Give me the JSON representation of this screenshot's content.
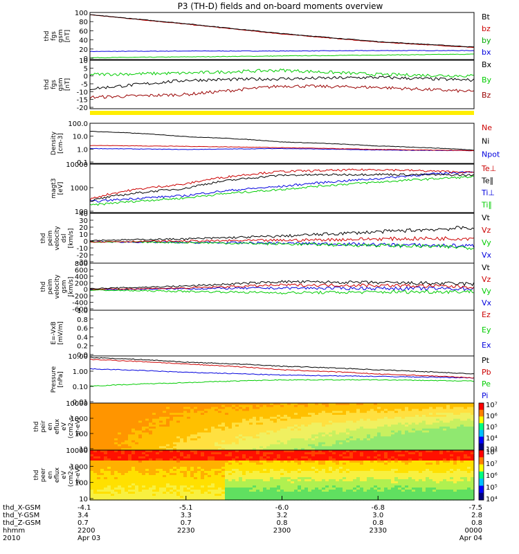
{
  "title": "P3 (TH-D) fields and on-board moments overview",
  "colors": {
    "black": "#000000",
    "red": "#cc0000",
    "darkred": "#990000",
    "green": "#00cc00",
    "blue": "#0000dd",
    "yellow": "#ffee00"
  },
  "panels": [
    {
      "id": "fgs-mag",
      "ylabel": [
        "thd",
        "fgs",
        "gsm",
        "[nT]"
      ],
      "ticks": [
        "100",
        "80",
        "60",
        "40",
        "20",
        "0"
      ],
      "legend": [
        {
          "text": "Bt",
          "color": "#000000"
        },
        {
          "text": "bz",
          "color": "#cc0000"
        },
        {
          "text": "by",
          "color": "#00aa00"
        },
        {
          "text": "bx",
          "color": "#0000dd"
        }
      ]
    },
    {
      "id": "fgs-comp",
      "ylabel": [
        "thd",
        "fgs",
        "gsm",
        "[nT]"
      ],
      "ticks": [
        "10",
        "5",
        "0",
        "-5",
        "-10",
        "-15",
        "-20"
      ],
      "legend": [
        {
          "text": "Bx",
          "color": "#000000"
        },
        {
          "text": "By",
          "color": "#00cc00"
        },
        {
          "text": "Bz",
          "color": "#990000"
        }
      ]
    },
    {
      "id": "density",
      "ylabel": [
        "Density",
        "[cm-3]"
      ],
      "ticks": [
        "100.0",
        "10.0",
        "1.0",
        "0.1"
      ],
      "legend": [
        {
          "text": "Ne",
          "color": "#cc0000"
        },
        {
          "text": "Ni",
          "color": "#000000"
        },
        {
          "text": "Npot",
          "color": "#0000dd"
        }
      ]
    },
    {
      "id": "temperature",
      "ylabel": [
        "magt3",
        "[eV]"
      ],
      "ticks": [
        "10000",
        "1000",
        "100"
      ],
      "legend": [
        {
          "text": "Te⊥",
          "color": "#cc0000"
        },
        {
          "text": "Te∥",
          "color": "#000000"
        },
        {
          "text": "Ti⊥",
          "color": "#0000dd"
        },
        {
          "text": "Ti∥",
          "color": "#00cc00"
        }
      ]
    },
    {
      "id": "peem-vel",
      "ylabel": [
        "thd",
        "peim",
        "velocity",
        "dsl",
        "[km/s]"
      ],
      "ticks": [
        "40",
        "30",
        "20",
        "10",
        "0",
        "-10",
        "-20",
        "-30"
      ],
      "legend": [
        {
          "text": "Vt",
          "color": "#000000"
        },
        {
          "text": "Vz",
          "color": "#cc0000"
        },
        {
          "text": "Vy",
          "color": "#00cc00"
        },
        {
          "text": "Vx",
          "color": "#0000dd"
        }
      ]
    },
    {
      "id": "peim-vel",
      "ylabel": [
        "thd",
        "peim",
        "velocity",
        "gsm",
        "[km/s]"
      ],
      "ticks": [
        "800",
        "600",
        "400",
        "200",
        "0",
        "-200",
        "-400",
        "-600"
      ],
      "legend": [
        {
          "text": "Vt",
          "color": "#000000"
        },
        {
          "text": "Vz",
          "color": "#cc0000"
        },
        {
          "text": "Vy",
          "color": "#00cc00"
        },
        {
          "text": "Vx",
          "color": "#0000dd"
        }
      ]
    },
    {
      "id": "efield",
      "ylabel": [
        "E=-VxB",
        "[mV/m]"
      ],
      "ticks": [
        "1.0",
        "0.8",
        "0.6",
        "0.4",
        "0.2",
        "0.0"
      ],
      "legend": [
        {
          "text": "Ez",
          "color": "#cc0000"
        },
        {
          "text": "Ey",
          "color": "#00cc00"
        },
        {
          "text": "Ex",
          "color": "#0000dd"
        }
      ]
    },
    {
      "id": "pressure",
      "ylabel": [
        "Pressure",
        "[nPa]"
      ],
      "ticks": [
        "10.00",
        "1.00",
        "0.10",
        "0.01"
      ],
      "legend": [
        {
          "text": "Pt",
          "color": "#000000"
        },
        {
          "text": "Pb",
          "color": "#cc0000"
        },
        {
          "text": "Pe",
          "color": "#00cc00"
        },
        {
          "text": "Pi",
          "color": "#0000dd"
        }
      ]
    },
    {
      "id": "ion-spec",
      "ylabel": [
        "thd",
        "peir",
        "en",
        "eflux",
        "eV",
        "(cm2-s-",
        "sr-eV)"
      ],
      "ticks": [
        "10000",
        "1000",
        "100",
        "10"
      ],
      "colorbar": [
        "10⁷",
        "10⁶",
        "10⁵",
        "10⁴",
        "10³"
      ]
    },
    {
      "id": "elec-spec",
      "ylabel": [
        "thd",
        "peer",
        "en",
        "eflux",
        "eV",
        "(cm2-s-",
        "sr-eV)"
      ],
      "ticks": [
        "10000",
        "1000",
        "100",
        "10"
      ],
      "colorbar": [
        "10⁸",
        "10⁷",
        "10⁶",
        "10⁵",
        "10⁴"
      ]
    }
  ],
  "footer": {
    "labels": [
      "thd_X-GSM",
      "thd_Y-GSM",
      "thd_Z-GSM",
      "hhmm",
      "2010"
    ],
    "columns": [
      [
        "-4.1",
        "3.4",
        "0.7",
        "2200",
        "Apr 03"
      ],
      [
        "-5.1",
        "3.3",
        "0.7",
        "2230",
        ""
      ],
      [
        "-6.0",
        "3.2",
        "0.8",
        "2300",
        ""
      ],
      [
        "-6.8",
        "3.0",
        "0.8",
        "2330",
        ""
      ],
      [
        "-7.5",
        "2.8",
        "0.8",
        "0000",
        "Apr 04"
      ]
    ]
  },
  "chart_data": [
    {
      "type": "line",
      "ylabel": "thd fgs gsm [nT]",
      "ylim": [
        0,
        105
      ],
      "x": [
        "2200",
        "2230",
        "2300",
        "2330",
        "0000"
      ],
      "series": [
        {
          "name": "Bt",
          "values": [
            100,
            80,
            58,
            40,
            28
          ]
        },
        {
          "name": "bz",
          "values": [
            100,
            79,
            57,
            39,
            27
          ]
        },
        {
          "name": "by",
          "values": [
            4,
            6,
            8,
            10,
            12
          ]
        },
        {
          "name": "bx",
          "values": [
            18,
            19,
            19,
            20,
            20
          ]
        }
      ]
    },
    {
      "type": "line",
      "ylabel": "thd fgs gsm [nT]",
      "ylim": [
        -22,
        12
      ],
      "x": [
        "2200",
        "2230",
        "2300",
        "2330",
        "0000"
      ],
      "series": [
        {
          "name": "Bx",
          "values": [
            -8,
            -2,
            -1,
            0,
            -2
          ]
        },
        {
          "name": "By",
          "values": [
            2,
            3,
            5,
            2,
            1
          ]
        },
        {
          "name": "Bz",
          "values": [
            -14,
            -12,
            -6,
            -7,
            -10
          ]
        }
      ]
    },
    {
      "type": "line",
      "ylabel": "Density [cm-3]",
      "scale": "log",
      "ylim": [
        0.1,
        100
      ],
      "x": [
        "2200",
        "2230",
        "2300",
        "2330",
        "0000"
      ],
      "series": [
        {
          "name": "Ne",
          "values": [
            2.2,
            1.9,
            1.5,
            1.1,
            0.9
          ]
        },
        {
          "name": "Ni",
          "values": [
            25,
            10,
            4,
            2,
            1
          ]
        },
        {
          "name": "Npot",
          "values": [
            1.3,
            1.1,
            1.3,
            1.0,
            0.9
          ]
        }
      ]
    },
    {
      "type": "line",
      "ylabel": "magt3 [eV]",
      "scale": "log",
      "ylim": [
        100,
        10000
      ],
      "x": [
        "2200",
        "2230",
        "2300",
        "2330",
        "0000"
      ],
      "series": [
        {
          "name": "Te⊥",
          "values": [
            350,
            1500,
            5000,
            6000,
            4500
          ]
        },
        {
          "name": "Te∥",
          "values": [
            300,
            1000,
            3500,
            3800,
            3500
          ]
        },
        {
          "name": "Ti⊥",
          "values": [
            280,
            500,
            1200,
            2500,
            5000
          ]
        },
        {
          "name": "Ti∥",
          "values": [
            200,
            400,
            900,
            1800,
            3000
          ]
        }
      ]
    },
    {
      "type": "line",
      "ylabel": "thd peim velocity dsl [km/s]",
      "ylim": [
        -30,
        40
      ],
      "x": [
        "2200",
        "2230",
        "2300",
        "2330",
        "0000"
      ],
      "series": [
        {
          "name": "Vt",
          "values": [
            2,
            4,
            8,
            14,
            20
          ]
        },
        {
          "name": "Vz",
          "values": [
            0,
            1,
            2,
            4,
            5
          ]
        },
        {
          "name": "Vy",
          "values": [
            0,
            -1,
            -3,
            -5,
            -8
          ]
        },
        {
          "name": "Vx",
          "values": [
            0,
            -1,
            -2,
            -4,
            -6
          ]
        }
      ]
    },
    {
      "type": "line",
      "ylabel": "thd peim velocity gsm [km/s]",
      "ylim": [
        -600,
        800
      ],
      "x": [
        "2200",
        "2230",
        "2300",
        "2330",
        "0000"
      ],
      "series": [
        {
          "name": "Vt",
          "values": [
            40,
            120,
            250,
            220,
            180
          ]
        },
        {
          "name": "Vz",
          "values": [
            20,
            60,
            150,
            140,
            100
          ]
        },
        {
          "name": "Vy",
          "values": [
            0,
            -40,
            -80,
            -60,
            -40
          ]
        },
        {
          "name": "Vx",
          "values": [
            10,
            40,
            60,
            50,
            40
          ]
        }
      ]
    },
    {
      "type": "line",
      "ylabel": "E=-VxB [mV/m]",
      "ylim": [
        0,
        1
      ],
      "x": [
        "2200",
        "2230",
        "2300",
        "2330",
        "0000"
      ],
      "series": []
    },
    {
      "type": "line",
      "ylabel": "Pressure [nPa]",
      "scale": "log",
      "ylim": [
        0.01,
        10
      ],
      "x": [
        "2200",
        "2230",
        "2300",
        "2330",
        "0000"
      ],
      "series": [
        {
          "name": "Pt",
          "values": [
            8,
            4,
            2.2,
            1.3,
            0.7
          ]
        },
        {
          "name": "Pb",
          "values": [
            6,
            3,
            1.3,
            0.7,
            0.4
          ]
        },
        {
          "name": "Pe",
          "values": [
            0.12,
            0.2,
            0.3,
            0.3,
            0.25
          ]
        },
        {
          "name": "Pi",
          "values": [
            1.5,
            0.9,
            0.6,
            0.5,
            0.4
          ]
        }
      ]
    },
    {
      "type": "heatmap",
      "ylabel": "thd peir en eflux",
      "scale": "log",
      "ylim": [
        8,
        20000
      ],
      "x": [
        "2200",
        "2230",
        "2300",
        "2330",
        "0000"
      ],
      "colorbar_range": [
        "10³",
        "10⁷"
      ]
    },
    {
      "type": "heatmap",
      "ylabel": "thd peer en eflux",
      "scale": "log",
      "ylim": [
        8,
        20000
      ],
      "x": [
        "2200",
        "2230",
        "2300",
        "2330",
        "0000"
      ],
      "colorbar_range": [
        "10⁴",
        "10⁸"
      ]
    }
  ]
}
